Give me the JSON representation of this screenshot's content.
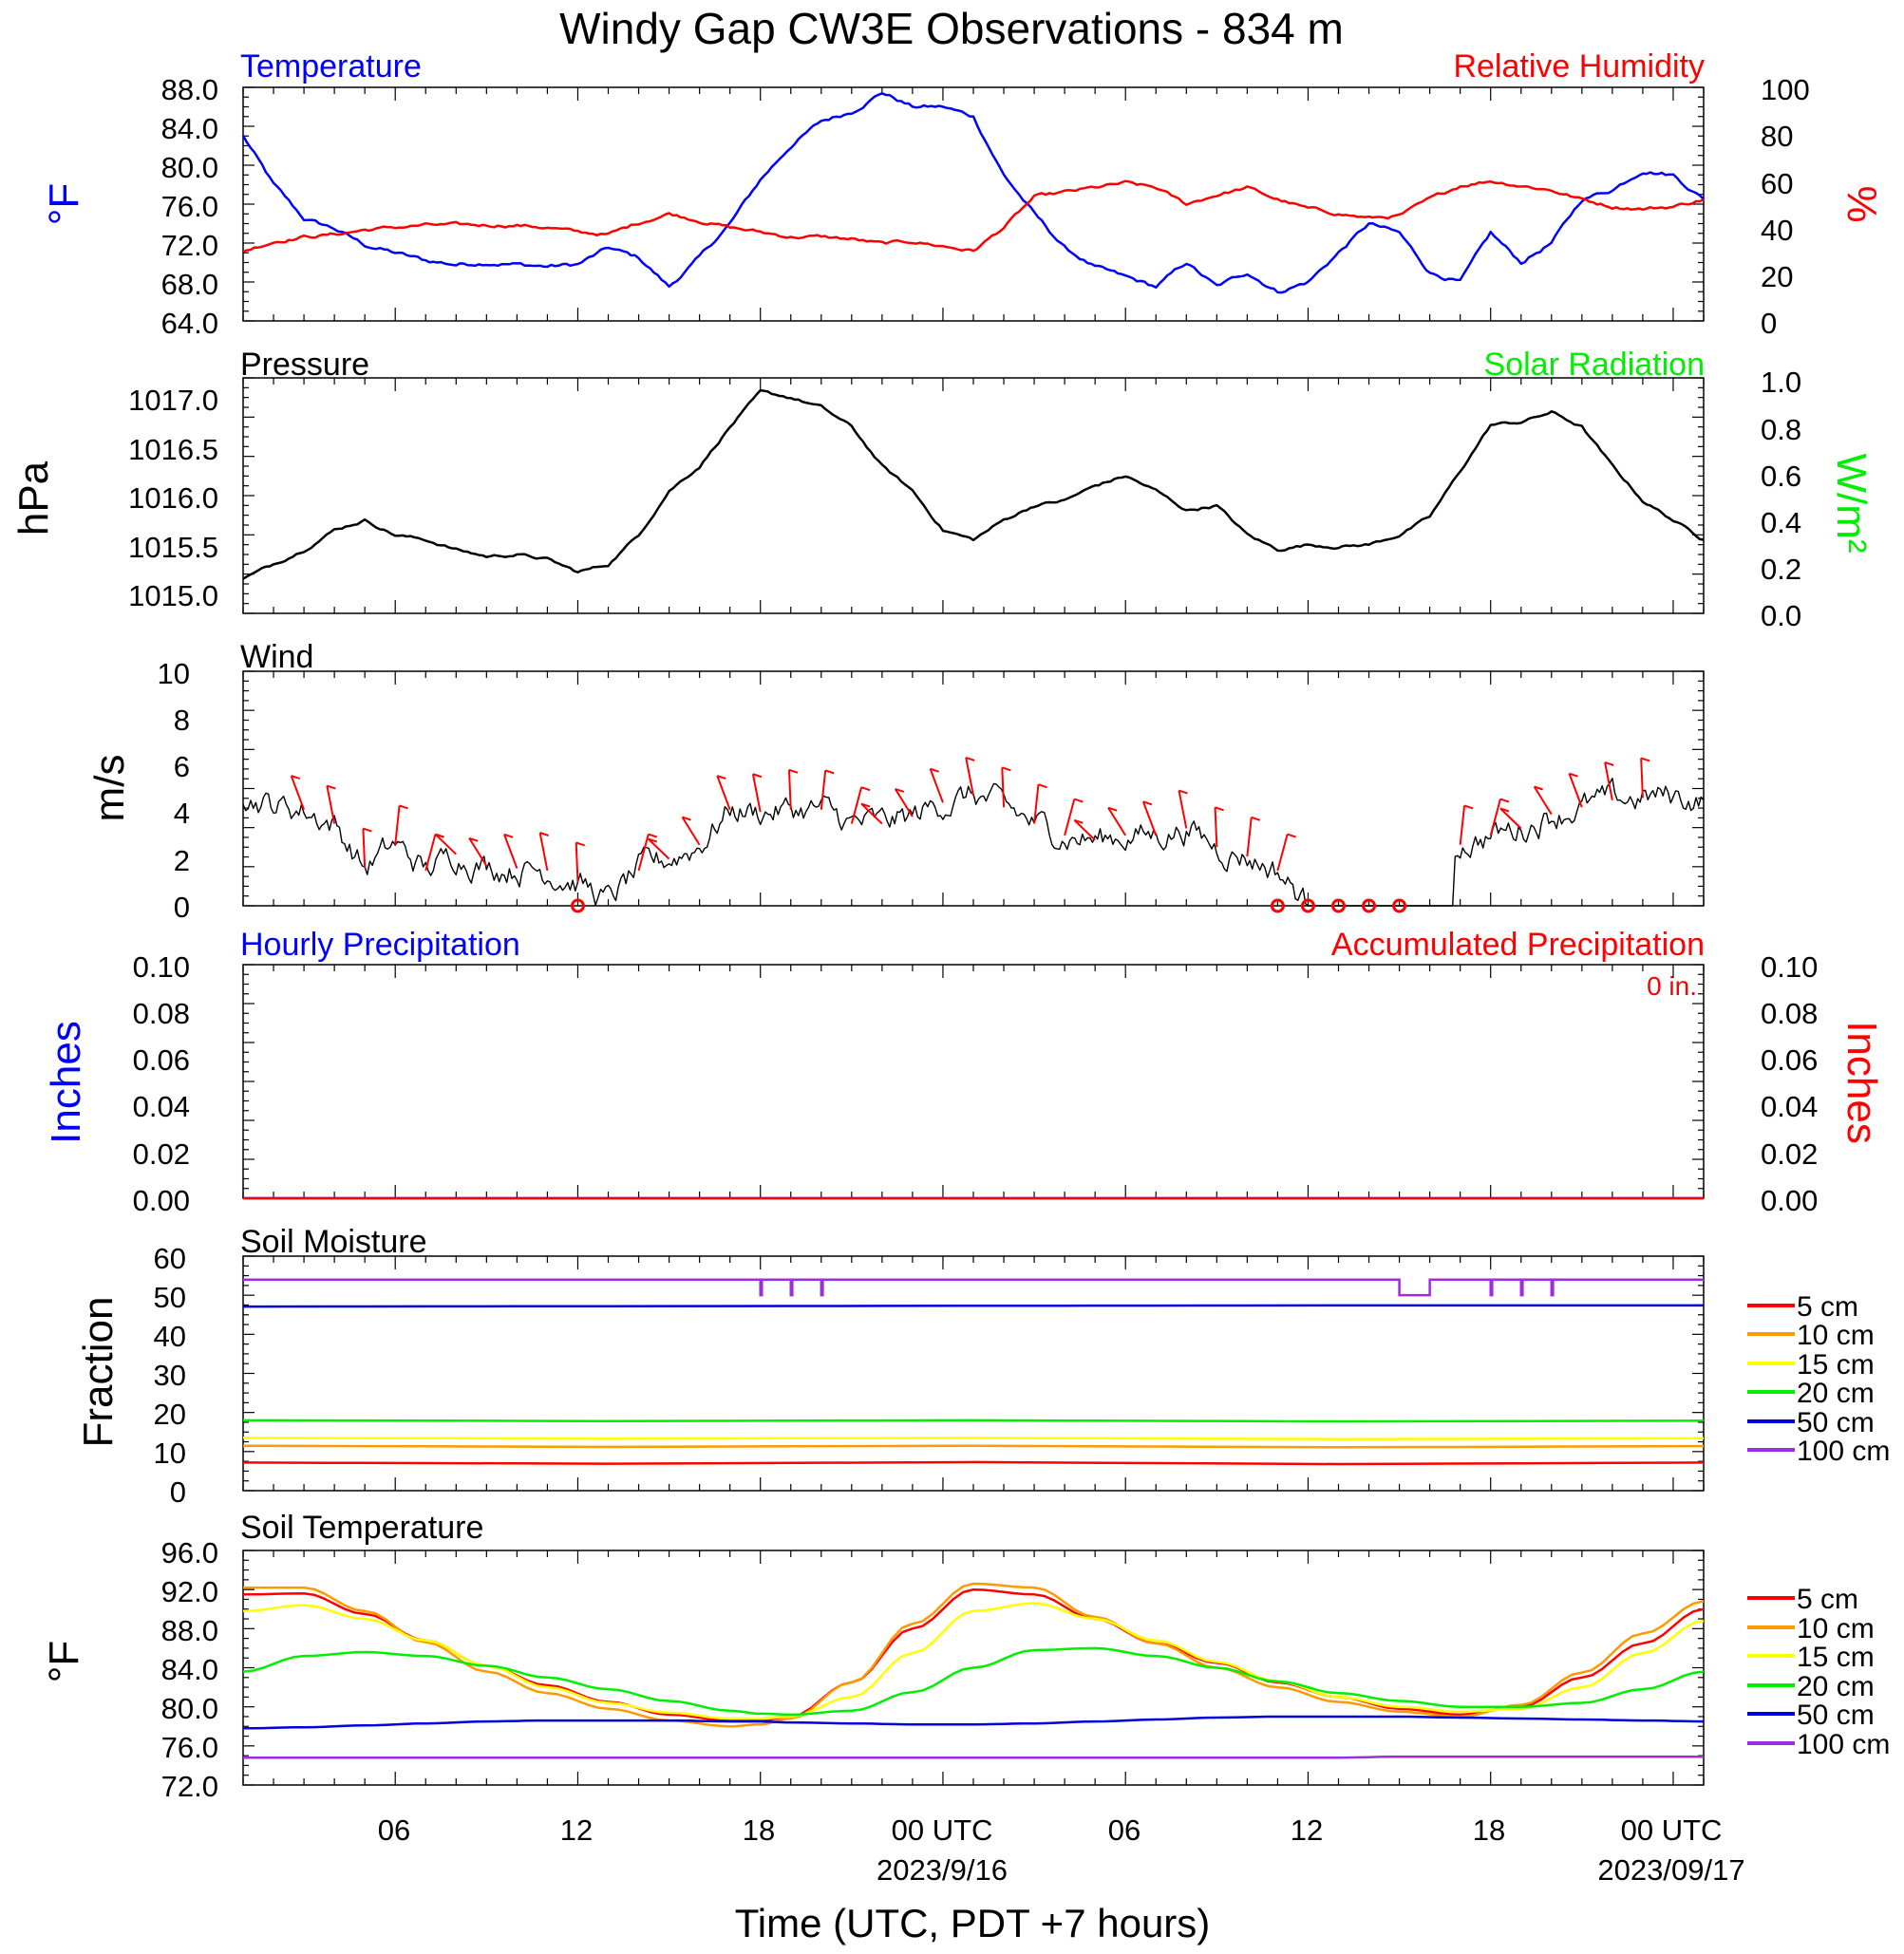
{
  "title": "Windy Gap CW3E Observations - 834 m",
  "colors": {
    "temperature": "#0000ff",
    "humidity": "#ff0000",
    "pressure": "#000000",
    "solar": "#00ee00",
    "wind": "#000000",
    "barb": "#ff0000",
    "precip_hourly": "#0000ff",
    "precip_accum": "#ff0000",
    "soil_5cm": "#ff0000",
    "soil_10cm": "#ff9900",
    "soil_15cm": "#ffff00",
    "soil_20cm": "#00ee00",
    "soil_50cm": "#0000dd",
    "soil_100cm": "#9a30dd"
  },
  "x_axis": {
    "label": "Time (UTC, PDT +7 hours)",
    "range_hours_from_start": [
      0,
      48
    ],
    "tick_labels": [
      "06",
      "12",
      "18",
      "00 UTC",
      "06",
      "12",
      "18",
      "00 UTC"
    ],
    "tick_hours": [
      5,
      11,
      17,
      23,
      29,
      35,
      41,
      47
    ],
    "date_labels": [
      "2023/9/16",
      "2023/09/17"
    ],
    "date_label_hours": [
      23,
      47
    ]
  },
  "panels": {
    "temperature": {
      "left_title": "Temperature",
      "right_title": "Relative Humidity",
      "left_unit": "°F",
      "right_unit": "%",
      "left_ticks": [
        "88.0",
        "84.0",
        "80.0",
        "76.0",
        "72.0",
        "68.0",
        "64.0"
      ],
      "right_ticks": [
        "100",
        "80",
        "60",
        "40",
        "20",
        "0"
      ]
    },
    "pressure": {
      "left_title": "Pressure",
      "right_title": "Solar Radiation",
      "left_unit": "hPa",
      "right_unit": "W/m²",
      "left_ticks": [
        "1017.0",
        "1016.5",
        "1016.0",
        "1015.5",
        "1015.0"
      ],
      "right_ticks": [
        "1.0",
        "0.8",
        "0.6",
        "0.4",
        "0.2",
        "0.0"
      ]
    },
    "wind": {
      "left_title": "Wind",
      "left_unit": "m/s",
      "left_ticks": [
        "10",
        "8",
        "6",
        "4",
        "2",
        "0"
      ]
    },
    "precip": {
      "left_title": "Hourly Precipitation",
      "right_title": "Accumulated Precipitation",
      "accum_text": "0 in.",
      "left_unit": "Inches",
      "right_unit": "Inches",
      "left_ticks": [
        "0.10",
        "0.08",
        "0.06",
        "0.04",
        "0.02",
        "0.00"
      ],
      "right_ticks": [
        "0.10",
        "0.08",
        "0.06",
        "0.04",
        "0.02",
        "0.00"
      ]
    },
    "soil_moisture": {
      "left_title": "Soil Moisture",
      "left_unit": "Fraction",
      "left_ticks": [
        "60",
        "50",
        "40",
        "30",
        "20",
        "10",
        "0"
      ],
      "legend": [
        "5 cm",
        "10 cm",
        "15 cm",
        "20 cm",
        "50 cm",
        "100 cm"
      ]
    },
    "soil_temperature": {
      "left_title": "Soil Temperature",
      "left_unit": "°F",
      "left_ticks": [
        "96.0",
        "92.0",
        "88.0",
        "84.0",
        "80.0",
        "76.0",
        "72.0"
      ],
      "legend": [
        "5 cm",
        "10 cm",
        "15 cm",
        "20 cm",
        "50 cm",
        "100 cm"
      ]
    }
  },
  "chart_data": [
    {
      "type": "line",
      "title": "Temperature",
      "ylabel": "°F",
      "ylim": [
        64,
        88
      ],
      "y2label": "%",
      "y2lim": [
        0,
        100
      ],
      "x": [
        0,
        1,
        2,
        3,
        4,
        5,
        6,
        7,
        8,
        9,
        10,
        11,
        12,
        13,
        14,
        15,
        16,
        17,
        18,
        19,
        20,
        21,
        22,
        23,
        24,
        25,
        26,
        27,
        28,
        29,
        30,
        31,
        32,
        33,
        34,
        35,
        36,
        37,
        38,
        39,
        40,
        41,
        42,
        43,
        44,
        45,
        46,
        47,
        48
      ],
      "series": [
        {
          "name": "Temperature",
          "axis": "left",
          "values": [
            83.0,
            78.0,
            74.5,
            73.5,
            71.8,
            71.0,
            70.2,
            69.8,
            70.0,
            69.8,
            69.6,
            69.8,
            71.5,
            70.5,
            67.5,
            70.5,
            74.0,
            78.5,
            82.0,
            84.5,
            85.5,
            87.5,
            86.0,
            86.0,
            85.0,
            79.0,
            75.0,
            71.5,
            69.5,
            68.5,
            67.5,
            70.0,
            67.5,
            69.0,
            67.0,
            68.0,
            71.0,
            74.0,
            73.0,
            69.0,
            68.0,
            73.0,
            70.0,
            72.0,
            76.5,
            77.5,
            79.5,
            79.0,
            76.5
          ]
        },
        {
          "name": "Relative Humidity",
          "axis": "right",
          "values": [
            30,
            34,
            36,
            37,
            39,
            40,
            41,
            41,
            41,
            41,
            40,
            38,
            37,
            42,
            46,
            43,
            40,
            38,
            36,
            36,
            35,
            33,
            34,
            32,
            30,
            40,
            53,
            55,
            57,
            59,
            57,
            50,
            54,
            57,
            52,
            48,
            46,
            44,
            45,
            52,
            58,
            60,
            58,
            56,
            52,
            49,
            48,
            49,
            52
          ]
        }
      ]
    },
    {
      "type": "line",
      "title": "Pressure",
      "ylabel": "hPa",
      "ylim": [
        1014.8,
        1017.2
      ],
      "y2label": "W/m²",
      "y2lim": [
        0,
        1
      ],
      "x": [
        0,
        1,
        2,
        3,
        4,
        5,
        6,
        7,
        8,
        9,
        10,
        11,
        12,
        13,
        14,
        15,
        16,
        17,
        18,
        19,
        20,
        21,
        22,
        23,
        24,
        25,
        26,
        27,
        28,
        29,
        30,
        31,
        32,
        33,
        34,
        35,
        36,
        37,
        38,
        39,
        40,
        41,
        42,
        43,
        44,
        45,
        46,
        47,
        48
      ],
      "series": [
        {
          "name": "Pressure",
          "axis": "left",
          "values": [
            1015.15,
            1015.3,
            1015.45,
            1015.65,
            1015.75,
            1015.6,
            1015.55,
            1015.45,
            1015.38,
            1015.4,
            1015.35,
            1015.22,
            1015.3,
            1015.6,
            1016.05,
            1016.3,
            1016.7,
            1017.05,
            1017.0,
            1016.9,
            1016.7,
            1016.3,
            1016.05,
            1015.65,
            1015.55,
            1015.75,
            1015.9,
            1015.95,
            1016.1,
            1016.2,
            1016.05,
            1015.85,
            1015.9,
            1015.6,
            1015.45,
            1015.5,
            1015.48,
            1015.5,
            1015.6,
            1015.78,
            1016.25,
            1016.72,
            1016.75,
            1016.85,
            1016.7,
            1016.3,
            1015.95,
            1015.75,
            1015.55
          ]
        }
      ]
    },
    {
      "type": "line",
      "title": "Wind",
      "ylabel": "m/s",
      "ylim": [
        0,
        10
      ],
      "x": [
        0,
        1,
        2,
        3,
        4,
        5,
        6,
        7,
        8,
        9,
        10,
        11,
        12,
        13,
        14,
        15,
        16,
        17,
        18,
        19,
        20,
        21,
        22,
        23,
        24,
        25,
        26,
        27,
        28,
        29,
        30,
        31,
        32,
        33,
        34,
        35,
        36,
        37,
        38,
        39,
        40,
        41,
        42,
        43,
        44,
        45,
        46,
        47,
        48
      ],
      "series": [
        {
          "name": "Wind speed",
          "values": [
            4.7,
            4.3,
            4.1,
            3.5,
            1.6,
            2.6,
            1.5,
            2.2,
            1.7,
            1.6,
            1.5,
            1.0,
            0.2,
            1.5,
            2.0,
            2.6,
            4.1,
            4.0,
            4.1,
            4.1,
            3.5,
            3.5,
            3.8,
            4.4,
            4.7,
            4.2,
            3.5,
            3.0,
            2.8,
            3.0,
            3.0,
            3.3,
            2.5,
            2.1,
            1.5,
            0.0,
            0.0,
            0.0,
            0.0,
            0.0,
            2.6,
            3.0,
            3.3,
            3.9,
            4.2,
            4.5,
            4.6,
            4.7,
            4.5
          ]
        }
      ],
      "calm_markers_hours": [
        11,
        34,
        35,
        36,
        37,
        38
      ]
    },
    {
      "type": "line",
      "title": "Hourly Precipitation",
      "ylabel": "Inches",
      "ylim": [
        0,
        0.1
      ],
      "y2label": "Inches",
      "y2lim": [
        0,
        0.1
      ],
      "x": [
        0,
        48
      ],
      "series": [
        {
          "name": "Hourly Precipitation",
          "axis": "left",
          "values": [
            0,
            0
          ]
        },
        {
          "name": "Accumulated Precipitation",
          "axis": "right",
          "values": [
            0,
            0
          ]
        }
      ]
    },
    {
      "type": "line",
      "title": "Soil Moisture",
      "ylabel": "Fraction",
      "ylim": [
        0,
        60
      ],
      "x": [
        0,
        12,
        24,
        36,
        48
      ],
      "series": [
        {
          "name": "5 cm",
          "values": [
            7.2,
            6.9,
            7.3,
            6.8,
            7.2
          ]
        },
        {
          "name": "10 cm",
          "values": [
            11.5,
            11.2,
            11.5,
            11.1,
            11.4
          ]
        },
        {
          "name": "15 cm",
          "values": [
            13.5,
            13.3,
            13.5,
            13.2,
            13.4
          ]
        },
        {
          "name": "20 cm",
          "values": [
            18.0,
            17.8,
            18.0,
            17.7,
            17.9
          ]
        },
        {
          "name": "50 cm",
          "values": [
            47.1,
            47.2,
            47.3,
            47.4,
            47.4
          ]
        },
        {
          "name": "100 cm",
          "values": [
            54.0,
            54.0,
            54.0,
            54.0,
            54.0
          ],
          "dips": [
            {
              "hour": 17,
              "value": 50
            },
            {
              "hour": 18,
              "value": 50
            },
            {
              "hour": 19,
              "value": 50
            },
            {
              "hour_start": 38,
              "hour_end": 39,
              "value": 50
            },
            {
              "hour": 41,
              "value": 50
            },
            {
              "hour": 42,
              "value": 50
            },
            {
              "hour": 43,
              "value": 50
            }
          ]
        }
      ]
    },
    {
      "type": "line",
      "title": "Soil Temperature",
      "ylabel": "°F",
      "ylim": [
        72,
        96
      ],
      "x": [
        0,
        2,
        4,
        6,
        8,
        10,
        12,
        14,
        16,
        17,
        18,
        20,
        22,
        24,
        26,
        28,
        30,
        32,
        34,
        36,
        38,
        40,
        42,
        44,
        46,
        48
      ],
      "series": [
        {
          "name": "5 cm",
          "values": [
            91.5,
            91.6,
            89.5,
            86.8,
            84.2,
            82.2,
            80.5,
            79.2,
            78.6,
            78.6,
            79.0,
            82.5,
            88.0,
            92.0,
            91.5,
            89.0,
            86.5,
            84.5,
            82.5,
            81.0,
            79.8,
            79.2,
            80.0,
            83.0,
            86.5,
            90.0
          ]
        },
        {
          "name": "10 cm",
          "values": [
            92.2,
            92.2,
            89.8,
            86.6,
            83.6,
            81.4,
            79.8,
            78.6,
            78.0,
            78.2,
            78.8,
            82.5,
            88.5,
            92.6,
            92.2,
            89.2,
            86.5,
            84.0,
            82.0,
            80.5,
            79.5,
            79.0,
            80.2,
            83.5,
            87.5,
            90.8
          ]
        },
        {
          "name": "15 cm",
          "values": [
            89.8,
            90.4,
            89.0,
            86.8,
            84.2,
            82.0,
            80.4,
            79.4,
            78.8,
            78.8,
            79.0,
            81.0,
            85.5,
            89.8,
            90.6,
            89.0,
            86.8,
            84.6,
            82.6,
            81.0,
            80.0,
            79.5,
            79.8,
            82.0,
            85.5,
            88.8
          ]
        },
        {
          "name": "20 cm",
          "values": [
            83.6,
            85.2,
            85.6,
            85.2,
            84.2,
            83.0,
            81.8,
            80.6,
            79.6,
            79.3,
            79.2,
            79.6,
            81.5,
            84.0,
            85.8,
            86.0,
            85.2,
            84.0,
            82.6,
            81.4,
            80.6,
            80.0,
            80.0,
            80.4,
            81.8,
            83.6
          ]
        },
        {
          "name": "50 cm",
          "values": [
            77.8,
            77.9,
            78.1,
            78.3,
            78.5,
            78.6,
            78.6,
            78.6,
            78.5,
            78.5,
            78.4,
            78.3,
            78.2,
            78.2,
            78.3,
            78.5,
            78.7,
            78.9,
            79.0,
            79.0,
            79.0,
            78.9,
            78.8,
            78.7,
            78.6,
            78.5
          ]
        },
        {
          "name": "100 cm",
          "values": [
            74.8,
            74.8,
            74.8,
            74.8,
            74.8,
            74.8,
            74.8,
            74.8,
            74.8,
            74.8,
            74.8,
            74.8,
            74.8,
            74.8,
            74.8,
            74.8,
            74.8,
            74.8,
            74.8,
            74.8,
            74.9,
            74.9,
            74.9,
            74.9,
            74.9,
            74.9
          ]
        }
      ]
    }
  ]
}
